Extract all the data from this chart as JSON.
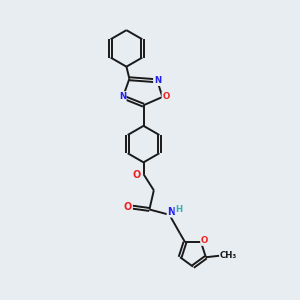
{
  "background_color": "#e8edf2",
  "bond_color": "#1a1a1a",
  "atom_colors": {
    "N": "#2020ee",
    "O": "#ee2020",
    "C": "#1a1a1a",
    "H": "#30b0b0"
  },
  "figsize": [
    3.0,
    3.0
  ],
  "dpi": 100
}
